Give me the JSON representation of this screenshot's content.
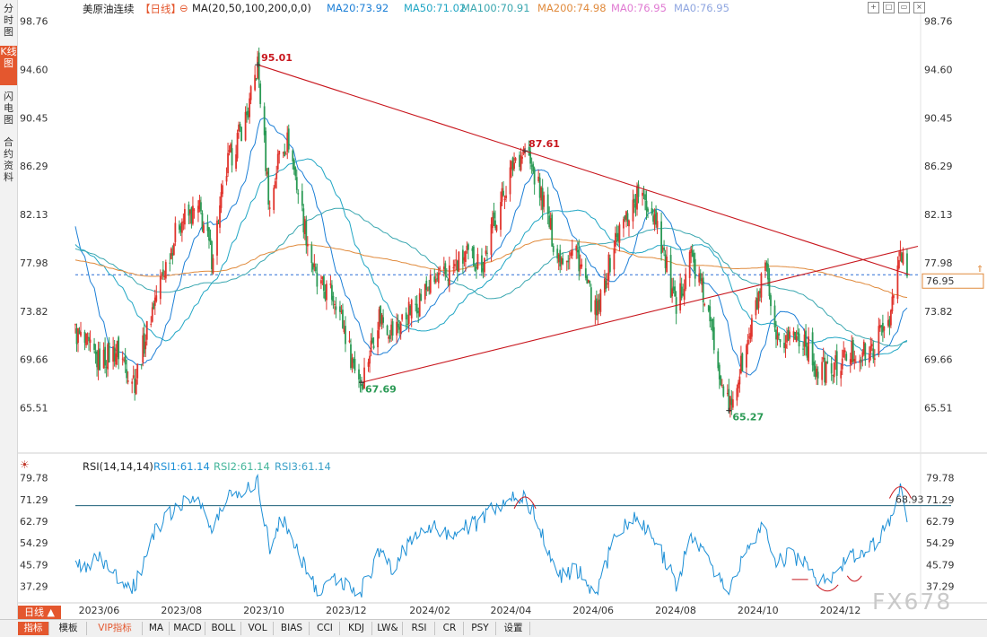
{
  "left_tabs": [
    "分时图",
    "K线图",
    "闪电图",
    "合约资料"
  ],
  "header": {
    "instrument": "美原油连续",
    "period": "【日线】",
    "ma_params": "MA(20,50,100,200,0,0)",
    "ma_items": [
      {
        "label": "MA20:73.92",
        "color": "#1c7fd6"
      },
      {
        "label": "MA50:71.02",
        "color": "#20a6c4"
      },
      {
        "label": "MA100:70.91",
        "color": "#3aa7b0"
      },
      {
        "label": "MA200:74.98",
        "color": "#e08a3c"
      },
      {
        "label": "MA0:76.95",
        "color": "#e07ad2"
      },
      {
        "label": "MA0:76.95",
        "color": "#8fa6e0"
      }
    ]
  },
  "window_controls": [
    "+",
    "□",
    "▭",
    "×"
  ],
  "rsi_header": {
    "params": "RSI(14,14,14)",
    "items": [
      {
        "label": "RSI1:61.14",
        "color": "#1c8fd6"
      },
      {
        "label": "RSI2:61.14",
        "color": "#44b59a"
      },
      {
        "label": "RSI3:61.14",
        "color": "#3aa0c8"
      }
    ]
  },
  "period_button": "日线 ▲",
  "bottom_tabs": [
    "指标",
    "模板",
    "VIP指标",
    "MA",
    "MACD",
    "BOLL",
    "VOL",
    "BIAS",
    "CCI",
    "KDJ",
    "LW&",
    "RSI",
    "CR",
    "PSY",
    "设置"
  ],
  "watermark": "FX678",
  "colors": {
    "up": "#e0332c",
    "down": "#2b9a55",
    "trend": "#c8161d",
    "price_line": "#2b6fd6",
    "accent": "#e4572e"
  },
  "chart_data": [
    {
      "type": "candlestick",
      "title": "美原油连续 日线",
      "y_ticks": [
        98.76,
        94.6,
        90.45,
        86.29,
        82.13,
        77.98,
        73.82,
        69.66,
        65.51
      ],
      "ylim": [
        62.0,
        99.5
      ],
      "x_ticks": [
        "2023/06",
        "2023/08",
        "2023/10",
        "2023/12",
        "2024/02",
        "2024/04",
        "2024/06",
        "2024/08",
        "2024/10",
        "2024/12"
      ],
      "last_price": 76.95,
      "price_path": [
        [
          "2023/05/15",
          72.0
        ],
        [
          "2023/06/01",
          69.5
        ],
        [
          "2023/06/15",
          70.5
        ],
        [
          "2023/06/28",
          67.8
        ],
        [
          "2023/07/12",
          74.5
        ],
        [
          "2023/07/31",
          81.5
        ],
        [
          "2023/08/15",
          82.5
        ],
        [
          "2023/08/24",
          78.5
        ],
        [
          "2023/09/05",
          86.5
        ],
        [
          "2023/09/20",
          91.0
        ],
        [
          "2023/09/27",
          95.01
        ],
        [
          "2023/10/06",
          82.5
        ],
        [
          "2023/10/13",
          87.5
        ],
        [
          "2023/10/20",
          88.5
        ],
        [
          "2023/11/01",
          81.0
        ],
        [
          "2023/11/10",
          76.0
        ],
        [
          "2023/11/24",
          75.0
        ],
        [
          "2023/12/05",
          70.0
        ],
        [
          "2023/12/13",
          67.69
        ],
        [
          "2023/12/26",
          73.5
        ],
        [
          "2024/01/05",
          72.0
        ],
        [
          "2024/01/19",
          74.0
        ],
        [
          "2024/02/01",
          76.0
        ],
        [
          "2024/02/12",
          76.8
        ],
        [
          "2024/02/28",
          78.5
        ],
        [
          "2024/03/12",
          78.0
        ],
        [
          "2024/03/20",
          81.5
        ],
        [
          "2024/04/05",
          87.0
        ],
        [
          "2024/04/12",
          87.61
        ],
        [
          "2024/04/25",
          83.5
        ],
        [
          "2024/05/06",
          78.5
        ],
        [
          "2024/05/20",
          79.0
        ],
        [
          "2024/06/04",
          73.3
        ],
        [
          "2024/06/18",
          80.0
        ],
        [
          "2024/07/05",
          84.0
        ],
        [
          "2024/07/18",
          82.0
        ],
        [
          "2024/08/02",
          73.5
        ],
        [
          "2024/08/12",
          79.0
        ],
        [
          "2024/08/23",
          74.8
        ],
        [
          "2024/09/10",
          65.27
        ],
        [
          "2024/09/24",
          71.0
        ],
        [
          "2024/10/07",
          77.5
        ],
        [
          "2024/10/15",
          70.6
        ],
        [
          "2024/10/25",
          71.8
        ],
        [
          "2024/11/05",
          71.5
        ],
        [
          "2024/11/14",
          68.7
        ],
        [
          "2024/11/26",
          68.8
        ],
        [
          "2024/12/10",
          70.3
        ],
        [
          "2024/12/24",
          70.1
        ],
        [
          "2025/01/08",
          73.8
        ],
        [
          "2025/01/15",
          78.8
        ],
        [
          "2025/01/20",
          76.95
        ]
      ],
      "moving_averages": [
        {
          "name": "MA20",
          "value": 73.92
        },
        {
          "name": "MA50",
          "value": 71.02
        },
        {
          "name": "MA100",
          "value": 70.91
        },
        {
          "name": "MA200",
          "value": 74.98
        }
      ],
      "annotations": [
        {
          "text": "95.01",
          "date": "2023/09/27",
          "value": 95.01,
          "color": "#c8161d"
        },
        {
          "text": "87.61",
          "date": "2024/04/12",
          "value": 87.61,
          "color": "#c8161d"
        },
        {
          "text": "67.69",
          "date": "2023/12/13",
          "value": 67.69,
          "color": "#2b9a55"
        },
        {
          "text": "65.27",
          "date": "2024/09/10",
          "value": 65.27,
          "color": "#2b9a55"
        }
      ],
      "trendlines": [
        {
          "from": [
            "2023/09/27",
            95.01
          ],
          "to": [
            "2025/01/22",
            76.95
          ]
        },
        {
          "from": [
            "2023/12/13",
            67.69
          ],
          "to": [
            "2025/01/28",
            79.4
          ]
        }
      ]
    },
    {
      "type": "line",
      "title": "RSI(14,14,14)",
      "y_ticks": [
        79.78,
        71.29,
        62.79,
        54.29,
        45.79,
        37.29
      ],
      "ylim": [
        31.5,
        82.5
      ],
      "reference_line": 68.93,
      "rsi_path": [
        [
          "2023/05/15",
          44
        ],
        [
          "2023/06/01",
          48
        ],
        [
          "2023/06/15",
          41
        ],
        [
          "2023/06/28",
          37
        ],
        [
          "2023/07/12",
          58
        ],
        [
          "2023/07/31",
          70
        ],
        [
          "2023/08/15",
          72
        ],
        [
          "2023/08/24",
          58
        ],
        [
          "2023/09/05",
          73
        ],
        [
          "2023/09/20",
          76
        ],
        [
          "2023/09/27",
          79
        ],
        [
          "2023/10/06",
          52
        ],
        [
          "2023/10/13",
          63
        ],
        [
          "2023/10/20",
          60
        ],
        [
          "2023/11/01",
          45
        ],
        [
          "2023/11/10",
          36
        ],
        [
          "2023/11/24",
          41
        ],
        [
          "2023/12/05",
          35
        ],
        [
          "2023/12/13",
          36
        ],
        [
          "2023/12/26",
          50
        ],
        [
          "2024/01/05",
          45
        ],
        [
          "2024/01/19",
          55
        ],
        [
          "2024/02/01",
          62
        ],
        [
          "2024/02/12",
          58
        ],
        [
          "2024/02/28",
          60
        ],
        [
          "2024/03/12",
          63
        ],
        [
          "2024/03/20",
          68
        ],
        [
          "2024/04/05",
          72
        ],
        [
          "2024/04/12",
          73
        ],
        [
          "2024/04/25",
          58
        ],
        [
          "2024/05/06",
          41
        ],
        [
          "2024/05/20",
          44
        ],
        [
          "2024/06/04",
          34
        ],
        [
          "2024/06/18",
          58
        ],
        [
          "2024/07/05",
          64
        ],
        [
          "2024/07/18",
          55
        ],
        [
          "2024/08/02",
          38
        ],
        [
          "2024/08/12",
          55
        ],
        [
          "2024/08/23",
          50
        ],
        [
          "2024/09/10",
          35
        ],
        [
          "2024/09/24",
          52
        ],
        [
          "2024/10/07",
          62
        ],
        [
          "2024/10/15",
          46
        ],
        [
          "2024/10/25",
          50
        ],
        [
          "2024/11/05",
          47
        ],
        [
          "2024/11/14",
          40
        ],
        [
          "2024/11/26",
          42
        ],
        [
          "2024/12/10",
          49
        ],
        [
          "2024/12/24",
          52
        ],
        [
          "2025/01/08",
          63
        ],
        [
          "2025/01/15",
          75
        ],
        [
          "2025/01/20",
          61
        ]
      ]
    }
  ]
}
